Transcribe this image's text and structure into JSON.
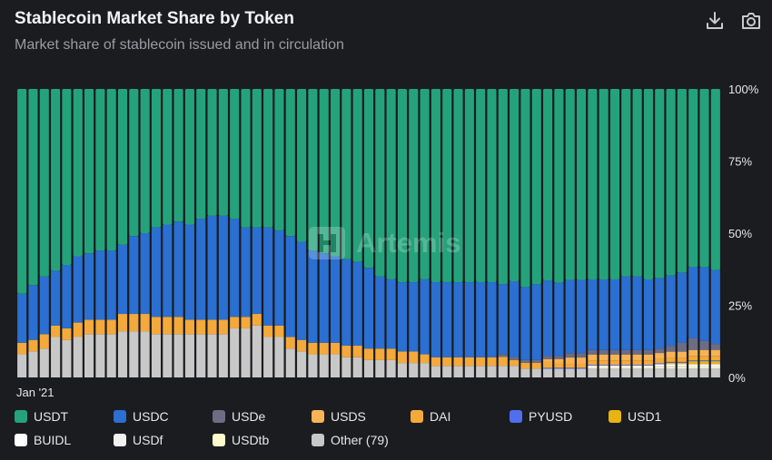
{
  "header": {
    "title": "Stablecoin Market Share by Token",
    "subtitle": "Market share of stablecoin issued and in circulation"
  },
  "toolbar": {
    "download_icon": "download-icon",
    "camera_icon": "camera-icon"
  },
  "watermark": {
    "text": "Artemis"
  },
  "chart_data": {
    "type": "bar",
    "stacked": true,
    "y_unit": "percent",
    "ylim": [
      0,
      100
    ],
    "y_ticks": [
      "0%",
      "25%",
      "50%",
      "75%",
      "100%"
    ],
    "x_tick_labels": [
      "Jan '21"
    ],
    "grid": false,
    "legend_placement": "bottom",
    "series": [
      {
        "name": "Other (79)",
        "color": "#c8c8c8",
        "values": [
          8,
          9,
          10,
          14,
          13,
          14,
          15,
          15,
          15,
          16,
          16,
          16,
          15,
          15,
          15,
          15,
          15,
          15,
          15,
          17,
          17,
          18,
          14,
          14,
          10,
          9,
          8,
          8,
          8,
          7,
          7,
          6,
          6,
          6,
          5,
          5,
          5,
          4,
          4,
          4,
          4,
          4,
          4,
          4,
          4,
          3,
          3,
          3,
          3,
          3,
          3,
          3,
          3,
          3,
          3,
          3,
          3,
          3,
          3,
          3,
          3,
          3,
          3
        ]
      },
      {
        "name": "USDtb",
        "color": "#fffacd",
        "values": [
          0,
          0,
          0,
          0,
          0,
          0,
          0,
          0,
          0,
          0,
          0,
          0,
          0,
          0,
          0,
          0,
          0,
          0,
          0,
          0,
          0,
          0,
          0,
          0,
          0,
          0,
          0,
          0,
          0,
          0,
          0,
          0,
          0,
          0,
          0,
          0,
          0,
          0,
          0,
          0,
          0,
          0,
          0,
          0,
          0,
          0,
          0,
          0,
          0,
          0,
          0,
          0.5,
          0.5,
          0.5,
          0.5,
          0.5,
          0.5,
          0.5,
          0.5,
          0.5,
          0.5,
          0.5,
          0.5
        ]
      },
      {
        "name": "USDf",
        "color": "#f2f2f2",
        "values": [
          0,
          0,
          0,
          0,
          0,
          0,
          0,
          0,
          0,
          0,
          0,
          0,
          0,
          0,
          0,
          0,
          0,
          0,
          0,
          0,
          0,
          0,
          0,
          0,
          0,
          0,
          0,
          0,
          0,
          0,
          0,
          0,
          0,
          0,
          0,
          0,
          0,
          0,
          0,
          0,
          0,
          0,
          0,
          0,
          0,
          0,
          0,
          0,
          0,
          0,
          0,
          0,
          0,
          0,
          0,
          0,
          0,
          0.5,
          0.5,
          0.5,
          0.5,
          0.5,
          0.5
        ]
      },
      {
        "name": "BUIDL",
        "color": "#ffffff",
        "values": [
          0,
          0,
          0,
          0,
          0,
          0,
          0,
          0,
          0,
          0,
          0,
          0,
          0,
          0,
          0,
          0,
          0,
          0,
          0,
          0,
          0,
          0,
          0,
          0,
          0,
          0,
          0,
          0,
          0,
          0,
          0,
          0,
          0,
          0,
          0,
          0,
          0,
          0,
          0,
          0,
          0,
          0,
          0,
          0,
          0,
          0,
          0,
          0,
          0,
          0,
          0,
          0.5,
          0.5,
          0.5,
          0.5,
          0.5,
          0.5,
          0.5,
          0.5,
          0.5,
          0.5,
          0.5,
          0.5
        ]
      },
      {
        "name": "USD1",
        "color": "#e8b40f",
        "values": [
          0,
          0,
          0,
          0,
          0,
          0,
          0,
          0,
          0,
          0,
          0,
          0,
          0,
          0,
          0,
          0,
          0,
          0,
          0,
          0,
          0,
          0,
          0,
          0,
          0,
          0,
          0,
          0,
          0,
          0,
          0,
          0,
          0,
          0,
          0,
          0,
          0,
          0,
          0,
          0,
          0,
          0,
          0,
          0,
          0,
          0,
          0,
          0,
          0,
          0,
          0,
          0,
          0,
          0,
          0,
          0,
          0,
          0,
          0.5,
          0.5,
          1,
          1,
          1
        ]
      },
      {
        "name": "PYUSD",
        "color": "#4f6ff0",
        "values": [
          0,
          0,
          0,
          0,
          0,
          0,
          0,
          0,
          0,
          0,
          0,
          0,
          0,
          0,
          0,
          0,
          0,
          0,
          0,
          0,
          0,
          0,
          0,
          0,
          0,
          0,
          0,
          0,
          0,
          0,
          0,
          0,
          0,
          0,
          0,
          0,
          0,
          0,
          0,
          0,
          0,
          0,
          0,
          0,
          0,
          0,
          0,
          0.3,
          0.3,
          0.3,
          0.3,
          0.3,
          0.3,
          0.3,
          0.3,
          0.3,
          0.3,
          0.3,
          0.3,
          0.3,
          0.3,
          0.3,
          0.3
        ]
      },
      {
        "name": "DAI",
        "color": "#f4a93a",
        "values": [
          4,
          4,
          5,
          4,
          4,
          5,
          5,
          5,
          5,
          6,
          6,
          6,
          6,
          6,
          6,
          5,
          5,
          5,
          5,
          4,
          4,
          4,
          4,
          4,
          4,
          4,
          4,
          4,
          4,
          4,
          4,
          4,
          4,
          4,
          4,
          4,
          3,
          3,
          3,
          3,
          3,
          3,
          3,
          3,
          2,
          2,
          2,
          2,
          1.5,
          1.5,
          1.5,
          1.5,
          1.5,
          1.5,
          1.5,
          1.5,
          1.5,
          1.5,
          1.5,
          1.5,
          1.5,
          1.5,
          1.5
        ]
      },
      {
        "name": "USDS",
        "color": "#f7b356",
        "values": [
          0,
          0,
          0,
          0,
          0,
          0,
          0,
          0,
          0,
          0,
          0,
          0,
          0,
          0,
          0,
          0,
          0,
          0,
          0,
          0,
          0,
          0,
          0,
          0,
          0,
          0,
          0,
          0,
          0,
          0,
          0,
          0,
          0,
          0,
          0,
          0,
          0,
          0,
          0,
          0,
          0,
          0,
          0,
          0,
          0,
          0,
          0,
          1,
          1.5,
          2,
          2,
          2,
          2,
          2,
          2,
          2,
          2,
          2,
          2,
          2,
          2,
          2,
          2
        ]
      },
      {
        "name": "USDe",
        "color": "#6c6d85",
        "values": [
          0,
          0,
          0,
          0,
          0,
          0,
          0,
          0,
          0,
          0,
          0,
          0,
          0,
          0,
          0,
          0,
          0,
          0,
          0,
          0,
          0,
          0,
          0,
          0,
          0,
          0,
          0,
          0,
          0,
          0,
          0,
          0,
          0,
          0,
          0,
          0,
          0,
          0,
          0,
          0,
          0,
          0,
          0,
          1,
          1,
          1,
          1,
          1,
          1,
          1.5,
          1.5,
          1.5,
          1.5,
          1.5,
          1.5,
          1.5,
          1.5,
          1.5,
          2,
          3,
          4,
          3,
          2
        ]
      },
      {
        "name": "USDC",
        "color": "#2a6fd1",
        "values": [
          17,
          19,
          20,
          19,
          22,
          23,
          23,
          24,
          24,
          24,
          27,
          28,
          31,
          32,
          33,
          33,
          35,
          36,
          36,
          34,
          31,
          30,
          34,
          33,
          35,
          34,
          32,
          31,
          30,
          30,
          29,
          28,
          25,
          24,
          24,
          24,
          26,
          26,
          26,
          26,
          26,
          26,
          26,
          24,
          26,
          25,
          26,
          26,
          25,
          25,
          25,
          24,
          24,
          24,
          25,
          25,
          24,
          24,
          24,
          24,
          24,
          25,
          25
        ]
      },
      {
        "name": "USDT",
        "color": "#24a37a",
        "values": [
          71,
          68,
          65,
          63,
          61,
          58,
          57,
          56,
          56,
          54,
          51,
          50,
          48,
          47,
          46,
          47,
          45,
          44,
          44,
          45,
          48,
          48,
          48,
          49,
          51,
          53,
          56,
          57,
          58,
          59,
          60,
          62,
          65,
          66,
          67,
          67,
          66,
          67,
          67,
          67,
          67,
          67,
          67,
          67,
          66,
          68,
          67,
          65.7,
          66.2,
          65.2,
          65.2,
          64.7,
          64.7,
          64.7,
          63.7,
          63.7,
          64.7,
          64.2,
          63.7,
          62.7,
          60.2,
          60.2,
          61.2
        ]
      }
    ]
  },
  "legend": {
    "items": [
      {
        "label": "USDT",
        "color": "#24a37a"
      },
      {
        "label": "USDC",
        "color": "#2a6fd1"
      },
      {
        "label": "USDe",
        "color": "#6c6d85"
      },
      {
        "label": "USDS",
        "color": "#f7b356"
      },
      {
        "label": "DAI",
        "color": "#f4a93a"
      },
      {
        "label": "PYUSD",
        "color": "#4f6ff0"
      },
      {
        "label": "USD1",
        "color": "#e8b40f"
      },
      {
        "label": "BUIDL",
        "color": "#ffffff"
      },
      {
        "label": "USDf",
        "color": "#f2f2f2"
      },
      {
        "label": "USDtb",
        "color": "#fffacd"
      },
      {
        "label": "Other (79)",
        "color": "#c8c8c8"
      }
    ]
  }
}
